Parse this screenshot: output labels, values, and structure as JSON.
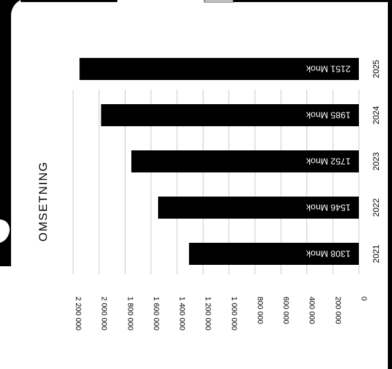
{
  "chart_data": {
    "type": "bar",
    "orientation": "horizontal",
    "title": "OMSETNING",
    "categories": [
      "2021",
      "2022",
      "2023",
      "2024",
      "2025"
    ],
    "values": [
      1308000,
      1546000,
      1752000,
      1985000,
      2151000
    ],
    "value_labels": [
      "1308 Mnok",
      "1546 Mnok",
      "1752 Mnok",
      "1985 Mnok",
      "2151 Mnok"
    ],
    "xlim": [
      0,
      2200000
    ],
    "x_ticks": [
      0,
      200000,
      400000,
      600000,
      800000,
      1000000,
      1200000,
      1400000,
      1600000,
      1800000,
      2000000,
      2200000
    ],
    "x_tick_labels": [
      "0",
      "200 000",
      "400 000",
      "600 000",
      "800 000",
      "1 000 000",
      "1 200 000",
      "1 400 000",
      "1 600 000",
      "1 800 000",
      "2 000 000",
      "2 200 000"
    ],
    "grid": true,
    "bar_color": "#000000",
    "label_color": "#ffffff"
  }
}
